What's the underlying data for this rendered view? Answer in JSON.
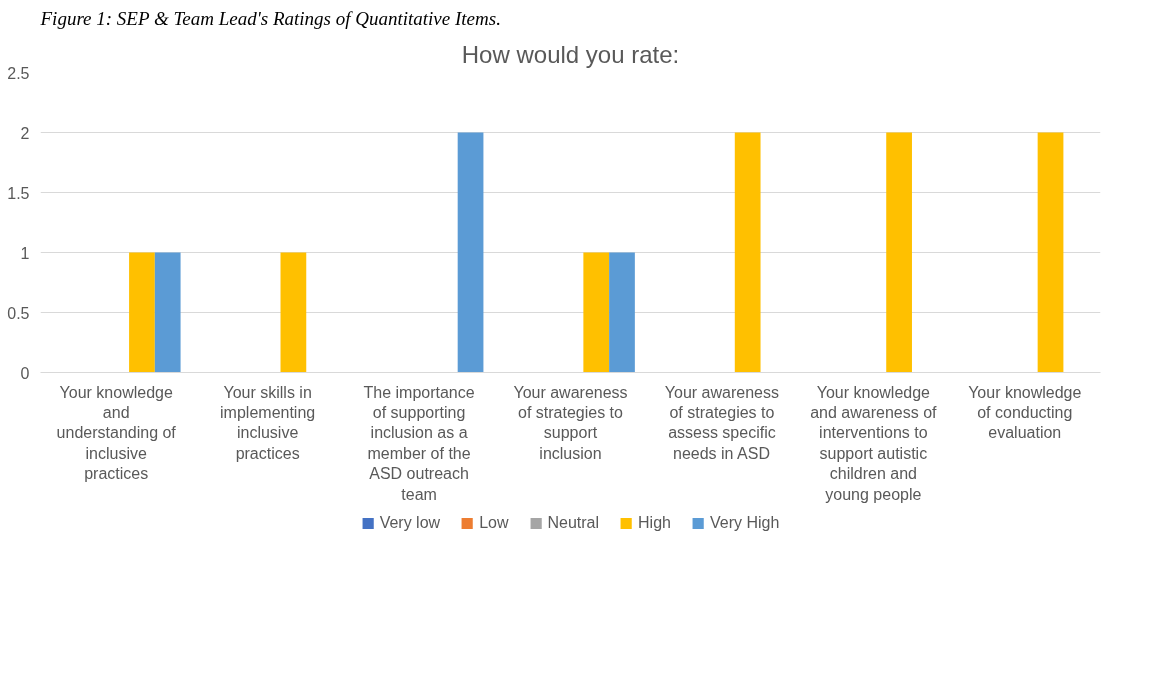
{
  "chart_data": {
    "type": "bar",
    "title": "How would you rate:",
    "annotations": [
      "Figure 1: SEP & Team Lead's Ratings of Quantitative Items."
    ],
    "categories": [
      "Your knowledge and understanding of inclusive practices",
      "Your skills in implementing inclusive practices",
      "The importance of supporting inclusion as a member of the ASD outreach team",
      "Your awareness of strategies to support inclusion",
      "Your awareness of strategies to assess specific needs in ASD",
      "Your knowledge and awareness of interventions to support autistic children and young people",
      "Your knowledge of conducting evaluation"
    ],
    "series": [
      {
        "name": "Very low",
        "color": "#4472c4",
        "values": [
          0,
          0,
          0,
          0,
          0,
          0,
          0
        ]
      },
      {
        "name": "Low",
        "color": "#ed7d31",
        "values": [
          0,
          0,
          0,
          0,
          0,
          0,
          0
        ]
      },
      {
        "name": "Neutral",
        "color": "#a5a5a5",
        "values": [
          0,
          0,
          0,
          0,
          0,
          0,
          0
        ]
      },
      {
        "name": "High",
        "color": "#ffc000",
        "values": [
          1,
          1,
          0,
          1,
          2,
          2,
          2
        ]
      },
      {
        "name": "Very High",
        "color": "#5b9bd5",
        "values": [
          1,
          0,
          2,
          1,
          0,
          0,
          0
        ]
      }
    ],
    "ylim": [
      0,
      2.5
    ],
    "yticks": [
      0,
      0.5,
      1,
      1.5,
      2,
      2.5
    ],
    "grid": "y",
    "legend": "bottom"
  }
}
